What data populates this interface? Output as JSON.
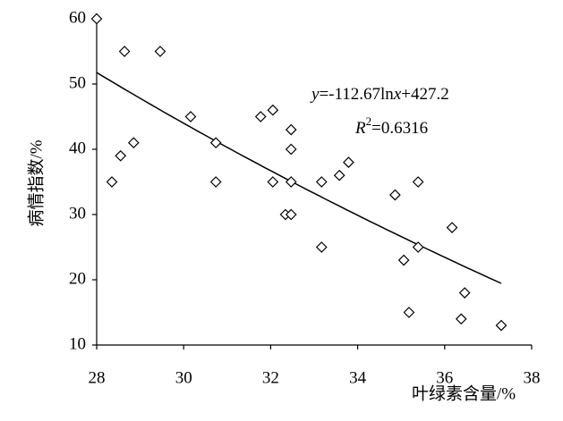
{
  "chart_data": {
    "type": "scatter",
    "x_label": "叶绿素含量/%",
    "y_label": "病情指数/%",
    "x": [
      28.0,
      28.35,
      28.55,
      28.64,
      28.85,
      29.46,
      30.16,
      30.74,
      30.74,
      31.77,
      32.05,
      32.05,
      32.34,
      32.47,
      32.47,
      32.47,
      32.47,
      33.17,
      33.17,
      33.58,
      33.79,
      34.86,
      35.06,
      35.18,
      35.39,
      35.39,
      36.17,
      36.46,
      36.38,
      37.3
    ],
    "values": [
      60,
      35,
      39,
      55,
      41,
      55,
      45,
      41,
      35,
      45,
      46,
      35,
      30,
      30,
      43,
      40,
      35,
      35,
      25,
      36,
      38,
      33,
      23,
      15,
      35,
      25,
      28,
      18,
      14,
      13
    ],
    "color": "#000000",
    "xlim": [
      28,
      38
    ],
    "xticks": [
      28,
      30,
      32,
      34,
      36,
      38
    ],
    "ylim": [
      10,
      60
    ],
    "yticks": [
      10,
      20,
      30,
      40,
      50,
      60
    ],
    "grid": false,
    "trendline": {
      "a": -112.67,
      "b": 427.2,
      "xrange": [
        28,
        37.3
      ],
      "color": "#000000"
    },
    "equation": {
      "y": "y",
      "mid": "=-112.67ln",
      "x": "x",
      "end": "+427.2"
    },
    "r_squared": {
      "r": "R",
      "sup": "2",
      "value": "=0.6316"
    }
  }
}
